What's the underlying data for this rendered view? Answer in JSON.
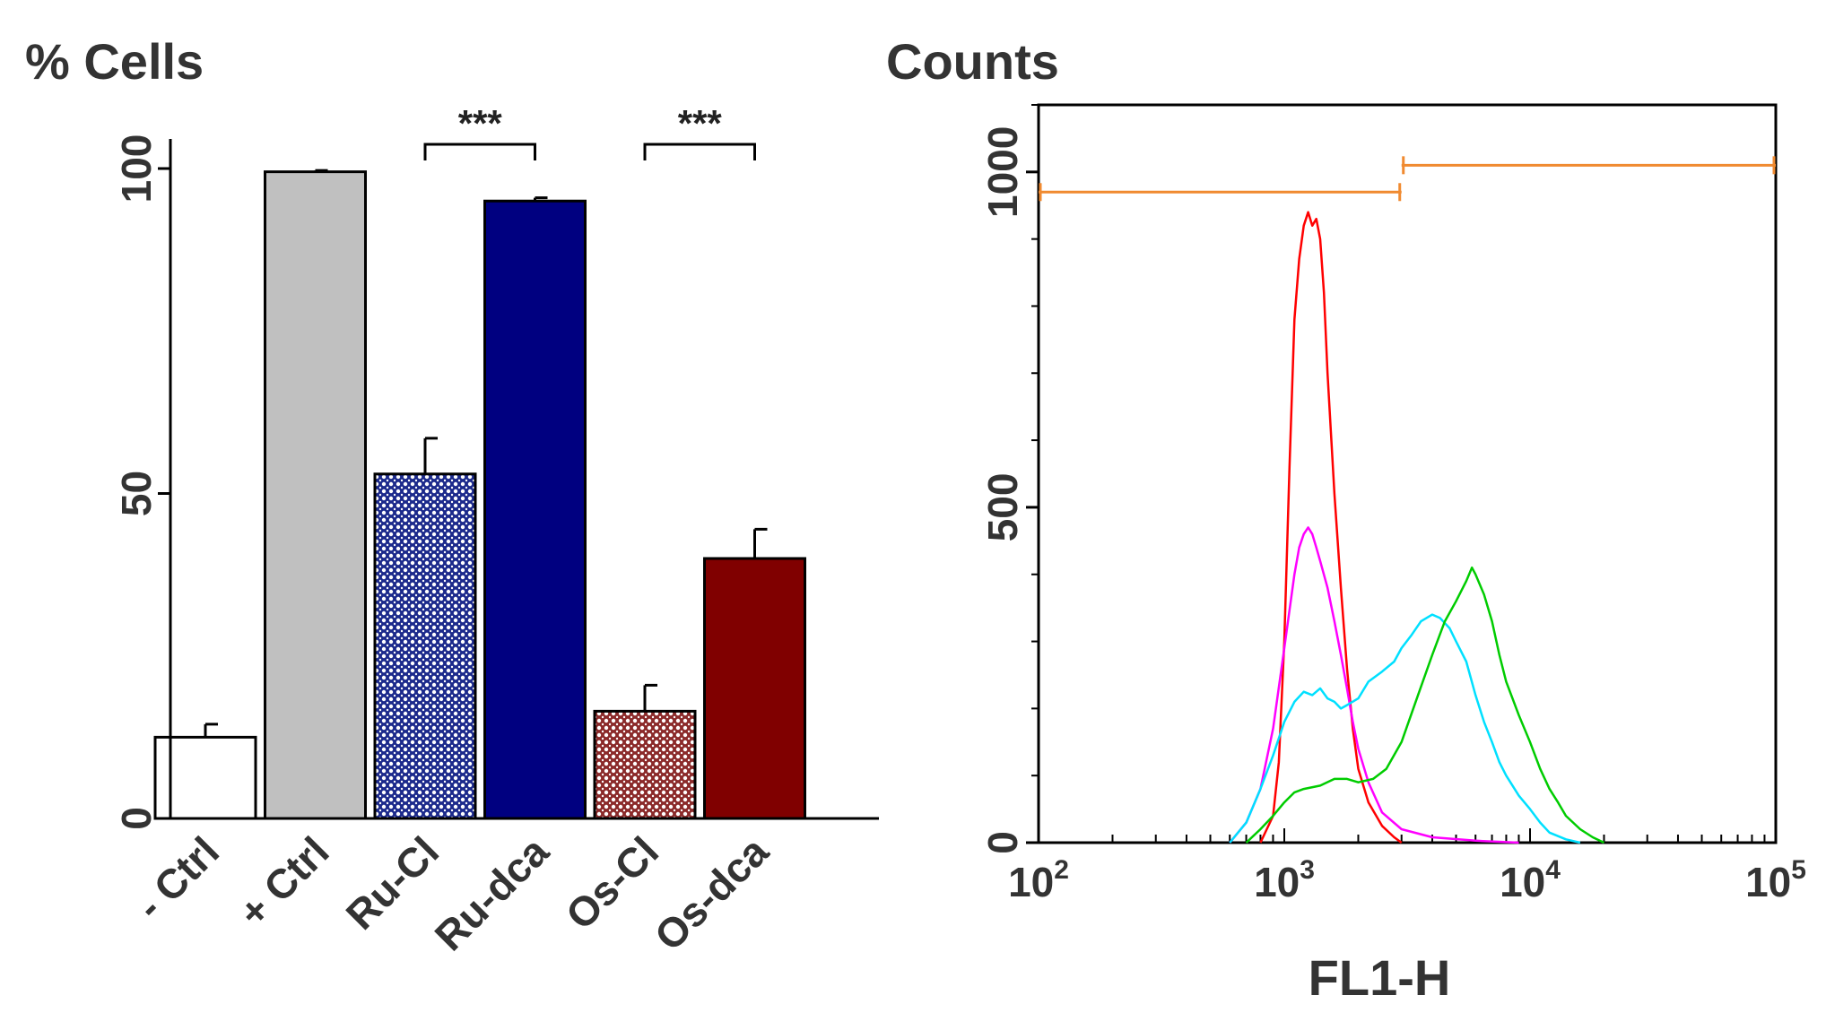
{
  "chart_data": [
    {
      "type": "bar",
      "title": "",
      "ylabel": "% Cells",
      "xlabel": "",
      "ylim": [
        0,
        100
      ],
      "yticks": [
        0,
        50,
        100
      ],
      "categories": [
        "- Ctrl",
        "+ Ctrl",
        "Ru-Cl",
        "Ru-dca",
        "Os-Cl",
        "Os-dca"
      ],
      "values": [
        12.5,
        99.5,
        53,
        95,
        16.5,
        40
      ],
      "errors": [
        2,
        0.2,
        5.5,
        0.5,
        4,
        4.5
      ],
      "colors": [
        "#ffffff",
        "#c0c0c0",
        "#1c2a8c",
        "#000080",
        "#8b2a2a",
        "#800000"
      ],
      "patterns": [
        "none",
        "none",
        "crosshatch",
        "none",
        "crosshatch",
        "none"
      ],
      "significance": [
        {
          "label": "***",
          "from": "Ru-Cl",
          "to": "Ru-dca"
        },
        {
          "label": "***",
          "from": "Os-Cl",
          "to": "Os-dca"
        }
      ]
    },
    {
      "type": "line",
      "title": "",
      "ylabel": "Counts",
      "xlabel": "FL1-H",
      "xscale": "log",
      "xlim": [
        100,
        100000
      ],
      "ylim": [
        0,
        1100
      ],
      "yticks": [
        0,
        500,
        1000
      ],
      "xticks": [
        {
          "value": 100,
          "base": "10",
          "exp": "2"
        },
        {
          "value": 1000,
          "base": "10",
          "exp": "3"
        },
        {
          "value": 10000,
          "base": "10",
          "exp": "4"
        },
        {
          "value": 100000,
          "base": "10",
          "exp": "5"
        }
      ],
      "gates": [
        {
          "x1": 100,
          "x2": 3000,
          "y": 970,
          "color": "#f08a30"
        },
        {
          "x1": 3000,
          "x2": 100000,
          "y": 1010,
          "color": "#f08a30"
        }
      ],
      "series": [
        {
          "name": "red",
          "color": "#ff0000",
          "points": [
            [
              800,
              0
            ],
            [
              900,
              40
            ],
            [
              950,
              120
            ],
            [
              1000,
              300
            ],
            [
              1050,
              560
            ],
            [
              1100,
              780
            ],
            [
              1150,
              870
            ],
            [
              1200,
              920
            ],
            [
              1250,
              940
            ],
            [
              1300,
              920
            ],
            [
              1350,
              930
            ],
            [
              1400,
              900
            ],
            [
              1450,
              820
            ],
            [
              1500,
              700
            ],
            [
              1600,
              520
            ],
            [
              1700,
              380
            ],
            [
              1800,
              260
            ],
            [
              1900,
              170
            ],
            [
              2000,
              110
            ],
            [
              2200,
              60
            ],
            [
              2500,
              25
            ],
            [
              2800,
              8
            ],
            [
              3000,
              0
            ]
          ]
        },
        {
          "name": "magenta",
          "color": "#ff00ff",
          "points": [
            [
              600,
              0
            ],
            [
              700,
              30
            ],
            [
              800,
              80
            ],
            [
              900,
              170
            ],
            [
              1000,
              290
            ],
            [
              1100,
              400
            ],
            [
              1150,
              440
            ],
            [
              1200,
              460
            ],
            [
              1250,
              470
            ],
            [
              1300,
              460
            ],
            [
              1350,
              440
            ],
            [
              1400,
              420
            ],
            [
              1500,
              380
            ],
            [
              1600,
              330
            ],
            [
              1700,
              280
            ],
            [
              1800,
              230
            ],
            [
              1900,
              180
            ],
            [
              2000,
              140
            ],
            [
              2200,
              90
            ],
            [
              2500,
              45
            ],
            [
              3000,
              20
            ],
            [
              4000,
              8
            ],
            [
              6000,
              3
            ],
            [
              9000,
              0
            ]
          ]
        },
        {
          "name": "cyan",
          "color": "#00e0ff",
          "points": [
            [
              600,
              0
            ],
            [
              700,
              30
            ],
            [
              800,
              80
            ],
            [
              900,
              130
            ],
            [
              1000,
              180
            ],
            [
              1100,
              210
            ],
            [
              1200,
              225
            ],
            [
              1300,
              220
            ],
            [
              1400,
              230
            ],
            [
              1500,
              215
            ],
            [
              1600,
              210
            ],
            [
              1700,
              200
            ],
            [
              1800,
              205
            ],
            [
              2000,
              215
            ],
            [
              2200,
              240
            ],
            [
              2500,
              255
            ],
            [
              2800,
              270
            ],
            [
              3000,
              290
            ],
            [
              3300,
              310
            ],
            [
              3600,
              330
            ],
            [
              4000,
              340
            ],
            [
              4300,
              335
            ],
            [
              4700,
              320
            ],
            [
              5000,
              300
            ],
            [
              5500,
              270
            ],
            [
              6000,
              220
            ],
            [
              6500,
              180
            ],
            [
              7000,
              150
            ],
            [
              7500,
              120
            ],
            [
              8000,
              100
            ],
            [
              9000,
              70
            ],
            [
              10000,
              50
            ],
            [
              11000,
              30
            ],
            [
              12000,
              15
            ],
            [
              14000,
              5
            ],
            [
              16000,
              0
            ]
          ]
        },
        {
          "name": "green",
          "color": "#00cc00",
          "points": [
            [
              700,
              0
            ],
            [
              800,
              20
            ],
            [
              900,
              40
            ],
            [
              1000,
              60
            ],
            [
              1100,
              75
            ],
            [
              1200,
              80
            ],
            [
              1400,
              85
            ],
            [
              1600,
              95
            ],
            [
              1800,
              95
            ],
            [
              2000,
              90
            ],
            [
              2300,
              95
            ],
            [
              2600,
              110
            ],
            [
              3000,
              150
            ],
            [
              3500,
              220
            ],
            [
              4000,
              280
            ],
            [
              4500,
              330
            ],
            [
              5000,
              360
            ],
            [
              5500,
              390
            ],
            [
              5800,
              410
            ],
            [
              6000,
              400
            ],
            [
              6500,
              370
            ],
            [
              7000,
              330
            ],
            [
              7500,
              280
            ],
            [
              8000,
              240
            ],
            [
              9000,
              190
            ],
            [
              10000,
              150
            ],
            [
              11000,
              110
            ],
            [
              12000,
              80
            ],
            [
              13000,
              60
            ],
            [
              14000,
              40
            ],
            [
              16000,
              20
            ],
            [
              18000,
              8
            ],
            [
              20000,
              0
            ]
          ]
        }
      ]
    }
  ]
}
